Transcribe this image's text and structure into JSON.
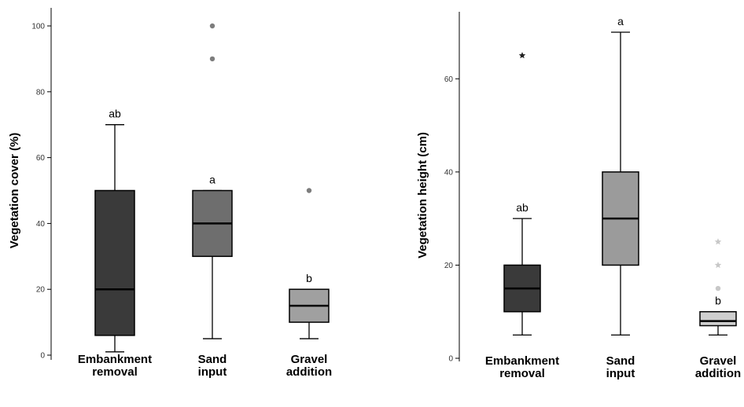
{
  "chart_data": [
    {
      "type": "boxplot",
      "ylabel": "Vegetation cover (%)",
      "ylim": [
        0,
        100
      ],
      "yticks": [
        "0",
        "20",
        "40",
        "60",
        "80",
        "100"
      ],
      "grid": false,
      "categories": [
        {
          "line1": "Embankment",
          "line2": "removal",
          "whisker_low": 1,
          "q1": 6,
          "median": 20,
          "q3": 50,
          "whisker_high": 70,
          "color": "#3a3a3a",
          "sig": "ab",
          "outliers": []
        },
        {
          "line1": "Sand",
          "line2": "input",
          "whisker_low": 5,
          "q1": 30,
          "median": 40,
          "q3": 50,
          "whisker_high": 50,
          "color": "#6e6e6e",
          "sig": "a",
          "outliers": [
            {
              "value": 90,
              "marker": "circle"
            },
            {
              "value": 100,
              "marker": "circle"
            }
          ]
        },
        {
          "line1": "Gravel",
          "line2": "addition",
          "whisker_low": 5,
          "q1": 10,
          "median": 15,
          "q3": 20,
          "whisker_high": 20,
          "color": "#a0a0a0",
          "sig": "b",
          "outliers": [
            {
              "value": 50,
              "marker": "circle"
            }
          ]
        }
      ]
    },
    {
      "type": "boxplot",
      "ylabel": "Vegetation height (cm)",
      "ylim": [
        0,
        70
      ],
      "yticks": [
        "0",
        "20",
        "40",
        "60"
      ],
      "grid": false,
      "categories": [
        {
          "line1": "Embankment",
          "line2": "removal",
          "whisker_low": 5,
          "q1": 10,
          "median": 15,
          "q3": 20,
          "whisker_high": 30,
          "color": "#3a3a3a",
          "sig": "ab",
          "outliers": [
            {
              "value": 65,
              "marker": "star"
            }
          ]
        },
        {
          "line1": "Sand",
          "line2": "input",
          "whisker_low": 5,
          "q1": 20,
          "median": 30,
          "q3": 40,
          "whisker_high": 70,
          "color": "#9b9b9b",
          "sig": "a",
          "outliers": []
        },
        {
          "line1": "Gravel",
          "line2": "addition",
          "whisker_low": 5,
          "q1": 7,
          "median": 8,
          "q3": 10,
          "whisker_high": 10,
          "color": "#cfcfcf",
          "sig": "b",
          "outliers": [
            {
              "value": 15,
              "marker": "circle"
            },
            {
              "value": 20,
              "marker": "star"
            },
            {
              "value": 25,
              "marker": "star"
            }
          ]
        }
      ]
    }
  ]
}
